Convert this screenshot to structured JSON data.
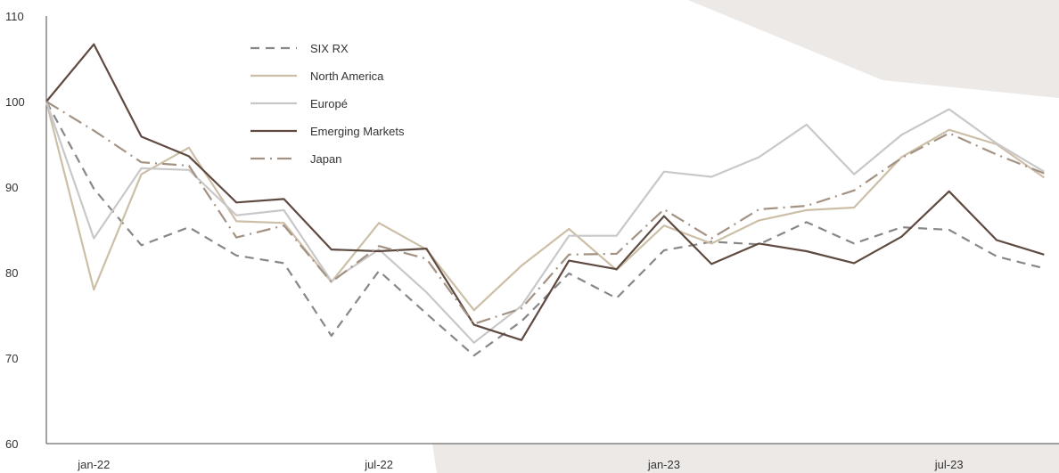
{
  "chart_data": {
    "type": "line",
    "title": "",
    "xlabel": "",
    "ylabel": "",
    "ylim": [
      60,
      110
    ],
    "y_ticks": [
      60,
      70,
      80,
      90,
      100,
      110
    ],
    "x_tick_labels": [
      "jan-22",
      "jul-22",
      "jan-23",
      "jul-23"
    ],
    "x_tick_index": [
      1,
      7,
      13,
      19
    ],
    "x": [
      "dec-21",
      "jan-22",
      "feb-22",
      "mar-22",
      "apr-22",
      "may-22",
      "jun-22",
      "jul-22",
      "aug-22",
      "sep-22",
      "oct-22",
      "nov-22",
      "dec-22",
      "jan-23",
      "feb-23",
      "mar-23",
      "apr-23",
      "may-23",
      "jun-23",
      "jul-23",
      "aug-23",
      "sep-23"
    ],
    "legend_position": "top-left",
    "grid": false,
    "series": [
      {
        "name": "SIX RX",
        "color": "#878787",
        "dash": "dash",
        "values": [
          100,
          89.8,
          83.2,
          85.3,
          82.0,
          81.1,
          72.6,
          80.2,
          75.2,
          70.3,
          74.3,
          79.9,
          77.0,
          82.6,
          83.6,
          83.3,
          85.9,
          83.4,
          85.3,
          85.0,
          81.9,
          80.5
        ]
      },
      {
        "name": "North America",
        "color": "#cdbfa7",
        "dash": "solid",
        "values": [
          100,
          78.0,
          91.5,
          94.6,
          86.0,
          85.8,
          78.9,
          85.8,
          82.7,
          75.6,
          80.8,
          85.1,
          80.3,
          85.5,
          83.4,
          86.1,
          87.3,
          87.6,
          93.5,
          96.7,
          95.0,
          91.1
        ]
      },
      {
        "name": "Europé",
        "color": "#c8c8c8",
        "dash": "solid",
        "values": [
          100,
          84.0,
          92.2,
          92.0,
          86.7,
          87.3,
          79.0,
          82.7,
          77.7,
          71.8,
          76.1,
          84.3,
          84.3,
          91.8,
          91.2,
          93.5,
          97.3,
          91.5,
          96.1,
          99.1,
          95.1,
          91.8
        ]
      },
      {
        "name": "Emerging Markets",
        "color": "#5f4a40",
        "dash": "solid",
        "values": [
          100,
          106.7,
          95.9,
          93.6,
          88.2,
          88.6,
          82.7,
          82.5,
          82.8,
          73.9,
          72.1,
          81.4,
          80.4,
          86.6,
          81.0,
          83.4,
          82.5,
          81.1,
          84.2,
          89.5,
          83.8,
          82.1
        ]
      },
      {
        "name": "Japan",
        "color": "#a39283",
        "dash": "dashdot",
        "values": [
          100,
          96.6,
          92.9,
          92.5,
          84.1,
          85.5,
          78.9,
          83.1,
          81.6,
          74.0,
          75.8,
          82.1,
          82.2,
          87.4,
          84.0,
          87.4,
          87.8,
          89.6,
          93.4,
          96.3,
          93.8,
          91.6
        ]
      }
    ]
  }
}
